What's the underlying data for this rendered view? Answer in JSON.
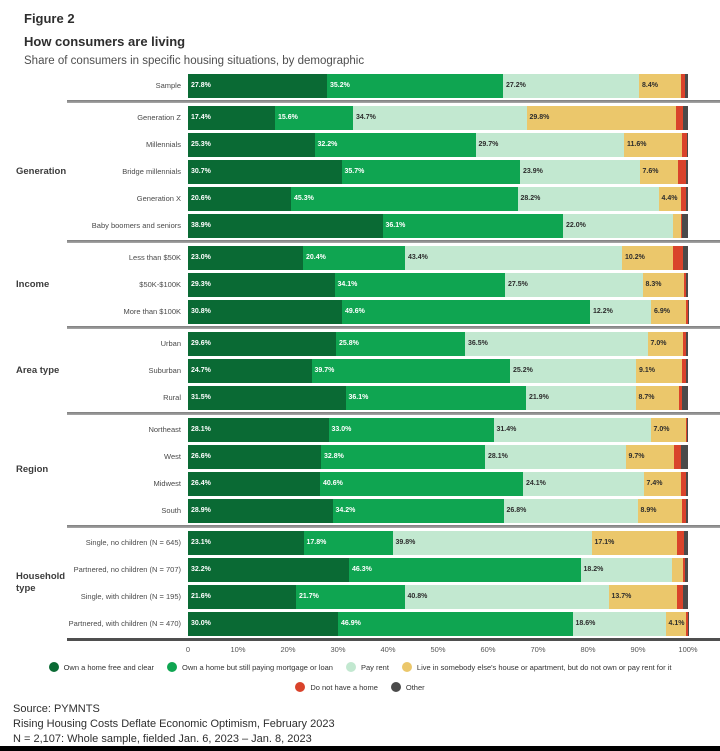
{
  "header": {
    "figure_label": "Figure 2",
    "title": "How consumers are living",
    "subtitle": "Share of consumers in specific housing situations, by demographic"
  },
  "chart_data": {
    "type": "bar",
    "orientation": "horizontal",
    "stacked": true,
    "unit": "%",
    "xlim": [
      0,
      100
    ],
    "axis_ticks": [
      "0",
      "10%",
      "20%",
      "30%",
      "40%",
      "50%",
      "60%",
      "70%",
      "80%",
      "90%",
      "100%"
    ],
    "value_label_threshold": 4,
    "labeled_segment_count": 4,
    "series": [
      {
        "name": "Own a home free and clear",
        "color": "#0A6A34",
        "label_style": "light"
      },
      {
        "name": "Own a home but still paying mortgage or loan",
        "color": "#0FA551",
        "label_style": "light"
      },
      {
        "name": "Pay rent",
        "color": "#C2E8D0",
        "label_style": "dark"
      },
      {
        "name": "Live in somebody else's house or apartment, but do not own or pay rent for it",
        "color": "#EBC76B",
        "label_style": "dark"
      },
      {
        "name": "Do not have a home",
        "color": "#D9432B",
        "label_style": "light"
      },
      {
        "name": "Other",
        "color": "#4A4A4A",
        "label_style": "light"
      }
    ],
    "groups": [
      {
        "label": "",
        "rows": [
          {
            "label": "Sample",
            "values": [
              27.8,
              35.2,
              27.2,
              8.4,
              0.8,
              0.6
            ]
          }
        ]
      },
      {
        "label": "Generation",
        "rows": [
          {
            "label": "Generation Z",
            "values": [
              17.4,
              15.6,
              34.7,
              29.8,
              1.5,
              1.0
            ]
          },
          {
            "label": "Millennials",
            "values": [
              25.3,
              32.2,
              29.7,
              11.6,
              1.0,
              0.2
            ]
          },
          {
            "label": "Bridge millennials",
            "values": [
              30.7,
              35.7,
              23.9,
              7.6,
              1.7,
              0.4
            ]
          },
          {
            "label": "Generation X",
            "values": [
              20.6,
              45.3,
              28.2,
              4.4,
              1.0,
              0.5
            ]
          },
          {
            "label": "Baby boomers and seniors",
            "values": [
              38.9,
              36.1,
              22.0,
              1.5,
              0.3,
              1.2
            ]
          }
        ]
      },
      {
        "label": "Income",
        "rows": [
          {
            "label": "Less than $50K",
            "values": [
              23.0,
              20.4,
              43.4,
              10.2,
              2.0,
              1.0
            ]
          },
          {
            "label": "$50K-$100K",
            "values": [
              29.3,
              34.1,
              27.5,
              8.3,
              0.3,
              0.5
            ]
          },
          {
            "label": "More than $100K",
            "values": [
              30.8,
              49.6,
              12.2,
              6.9,
              0.4,
              0.1
            ]
          }
        ]
      },
      {
        "label": "Area type",
        "rows": [
          {
            "label": "Urban",
            "values": [
              29.6,
              25.8,
              36.5,
              7.0,
              0.7,
              0.4
            ]
          },
          {
            "label": "Suburban",
            "values": [
              24.7,
              39.7,
              25.2,
              9.1,
              0.8,
              0.5
            ]
          },
          {
            "label": "Rural",
            "values": [
              31.5,
              36.1,
              21.9,
              8.7,
              0.6,
              1.2
            ]
          }
        ]
      },
      {
        "label": "Region",
        "rows": [
          {
            "label": "Northeast",
            "values": [
              28.1,
              33.0,
              31.4,
              7.0,
              0.3,
              0.2
            ]
          },
          {
            "label": "West",
            "values": [
              26.6,
              32.8,
              28.1,
              9.7,
              1.3,
              1.5
            ]
          },
          {
            "label": "Midwest",
            "values": [
              26.4,
              40.6,
              24.1,
              7.4,
              1.0,
              0.5
            ]
          },
          {
            "label": "South",
            "values": [
              28.9,
              34.2,
              26.8,
              8.9,
              0.7,
              0.5
            ]
          }
        ]
      },
      {
        "label": "Household type",
        "rows": [
          {
            "label": "Single, no children (N = 645)",
            "values": [
              23.1,
              17.8,
              39.8,
              17.1,
              1.4,
              0.8
            ]
          },
          {
            "label": "Partnered, no children (N = 707)",
            "values": [
              32.2,
              46.3,
              18.2,
              2.3,
              0.4,
              0.6
            ]
          },
          {
            "label": "Single, with children (N = 195)",
            "values": [
              21.6,
              21.7,
              40.8,
              13.7,
              1.2,
              1.0
            ]
          },
          {
            "label": "Partnered, with children (N = 470)",
            "values": [
              30.0,
              46.9,
              18.6,
              4.1,
              0.4,
              0.1
            ]
          }
        ]
      }
    ]
  },
  "legend": {
    "rows": [
      [
        0,
        1,
        2,
        3
      ],
      [
        4,
        5
      ]
    ]
  },
  "footer": {
    "source": "Source: PYMNTS",
    "publication": "Rising Housing Costs Deflate Economic Optimism, February 2023",
    "sample_note": "N = 2,107: Whole sample, fielded Jan. 6, 2023 – Jan. 8, 2023"
  }
}
